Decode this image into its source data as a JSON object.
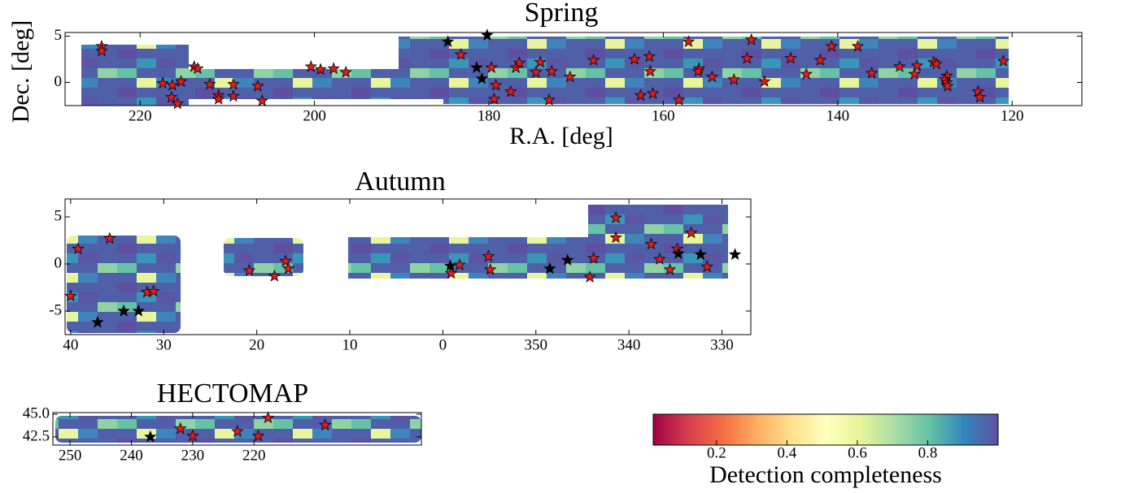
{
  "chart_data": [
    {
      "type": "scatter",
      "title": "Spring",
      "xlabel": "R.A. [deg]",
      "ylabel": "Dec. [deg]",
      "xlim": [
        228.6,
        112
      ],
      "ylim": [
        -2.5,
        5.4
      ],
      "xticks": [
        220,
        200,
        180,
        160,
        140,
        120
      ],
      "yticks": [
        0,
        5
      ],
      "series": [
        {
          "color": "#e41a1c",
          "x": [
            224.4,
            224.4,
            217.4,
            216.3,
            215.3,
            216.4,
            215.7,
            213.8,
            213.4,
            212.0,
            211.0,
            211.0,
            209.3,
            209.3,
            206.5,
            206.0,
            200.4,
            199.3,
            197.8,
            196.4,
            183.2,
            179.7,
            179.4,
            179.2,
            177.5,
            176.9,
            176.5,
            174.1,
            174.6,
            172.8,
            170.7,
            173.1,
            168.0,
            163.3,
            161.6,
            161.5,
            161.2,
            162.6,
            158.2,
            157.1,
            155.9,
            156.0,
            154.4,
            151.9,
            150.4,
            149.9,
            148.4,
            145.4,
            143.6,
            142.0,
            140.7,
            137.7,
            136.1,
            132.9,
            130.9,
            131.2,
            129.0,
            128.7,
            127.5,
            127.7,
            127.5,
            127.4,
            123.9,
            123.7,
            121.0
          ],
          "values": [
            3.9,
            3.4,
            -0.1,
            -0.3,
            0.1,
            -1.6,
            -2.3,
            1.7,
            1.5,
            -0.2,
            -1.4,
            -1.8,
            -0.2,
            -1.5,
            -0.4,
            -2.0,
            1.7,
            1.4,
            1.5,
            1.1,
            3.0,
            1.6,
            -1.8,
            -0.3,
            -1.0,
            1.6,
            2.1,
            2.2,
            1.1,
            1.2,
            0.6,
            -1.9,
            2.4,
            2.5,
            2.8,
            1.2,
            -1.2,
            -1.4,
            -1.9,
            4.4,
            1.5,
            1.2,
            0.6,
            0.3,
            2.6,
            4.6,
            0.1,
            2.6,
            0.9,
            2.4,
            3.9,
            3.9,
            1.0,
            1.7,
            1.8,
            0.9,
            2.2,
            2.0,
            0.7,
            0.3,
            0.0,
            -0.4,
            -1.0,
            -1.6,
            2.3
          ]
        },
        {
          "color": "#000000",
          "x": [
            184.7,
            180.2,
            181.4,
            180.8
          ],
          "values": [
            4.4,
            5.1,
            1.6,
            0.4
          ]
        }
      ]
    },
    {
      "type": "scatter",
      "title": "Autumn",
      "xlim": [
        40.6,
        -33.1
      ],
      "ylim": [
        -7.5,
        6.9
      ],
      "xticks": [
        40,
        30,
        20,
        10,
        0,
        {
          "value": -10,
          "label": "350"
        },
        {
          "value": -20,
          "label": "340"
        },
        {
          "value": -30,
          "label": "330"
        }
      ],
      "yticks": [
        -5,
        0,
        5
      ],
      "series": [
        {
          "color": "#e41a1c",
          "x": [
            39.2,
            35.8,
            40.0,
            31.8,
            31.1,
            20.8,
            16.9,
            16.6,
            18.1,
            -0.9,
            -1.8,
            -4.9,
            -5.1,
            -15.8,
            -16.2,
            -18.6,
            -18.6,
            -22.4,
            -23.3,
            -24.4,
            -25.2,
            -26.7,
            -28.4
          ],
          "values": [
            1.6,
            2.7,
            -3.4,
            -3.0,
            -2.9,
            -0.7,
            0.3,
            -0.5,
            -1.3,
            -1.0,
            -0.1,
            0.8,
            -0.6,
            -1.4,
            0.6,
            4.9,
            2.8,
            2.1,
            0.5,
            -0.6,
            1.6,
            3.3,
            -0.3
          ]
        },
        {
          "color": "#000000",
          "x": [
            -0.8,
            -11.5,
            -13.4,
            -25.3,
            -27.7,
            -31.4,
            34.3,
            32.7,
            37.1
          ],
          "values": [
            -0.2,
            -0.5,
            0.4,
            1.1,
            1.0,
            1.0,
            -5.0,
            -5.0,
            -6.2
          ]
        }
      ]
    },
    {
      "type": "scatter",
      "title": "HECTOMAP",
      "xlim": [
        252.8,
        192.7
      ],
      "ylim": [
        41.6,
        45.18
      ],
      "xticks": [
        250,
        240,
        230,
        220
      ],
      "yticks": [
        {
          "value": 45,
          "label": "45.0"
        },
        42.5
      ],
      "series": [
        {
          "color": "#e41a1c",
          "x": [
            232.0,
            230.0,
            222.7,
            219.3,
            217.7,
            208.4
          ],
          "values": [
            43.4,
            42.6,
            43.1,
            42.6,
            44.6,
            43.8
          ]
        },
        {
          "color": "#000000",
          "x": [
            236.9
          ],
          "values": [
            42.5
          ]
        }
      ]
    },
    {
      "type": "colorbar",
      "label": "Detection completeness",
      "lim": [
        0.02,
        1.0
      ],
      "ticks": [
        0.2,
        0.4,
        0.6,
        0.8
      ],
      "colors": [
        "#9e0142",
        "#d53e4f",
        "#f46d43",
        "#fdae61",
        "#fee08b",
        "#ffffbf",
        "#e6f598",
        "#abdda4",
        "#66c2a5",
        "#3288bd",
        "#5e4fa2"
      ]
    }
  ]
}
